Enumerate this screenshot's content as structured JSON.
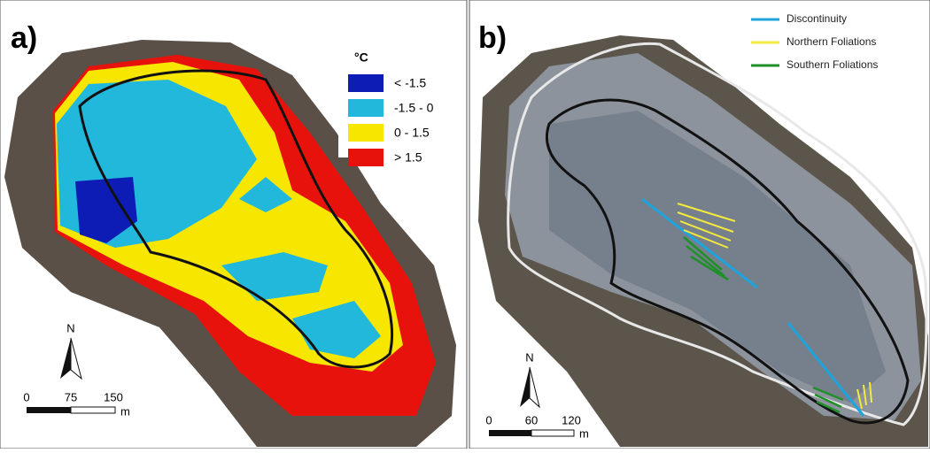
{
  "panel_a": {
    "label": "a)",
    "legend": {
      "title": "°C",
      "items": [
        "< -1.5",
        "-1.5 - 0",
        "0 - 1.5",
        "> 1.5"
      ]
    },
    "north": "N",
    "scale": [
      "0",
      "75",
      "150",
      "m"
    ]
  },
  "panel_b": {
    "label": "b)",
    "legend": {
      "items": [
        "Discontinuity",
        "Northern Foliations",
        "Southern Foliations"
      ]
    },
    "north": "N",
    "scale": [
      "0",
      "60",
      "120",
      "m"
    ]
  }
}
